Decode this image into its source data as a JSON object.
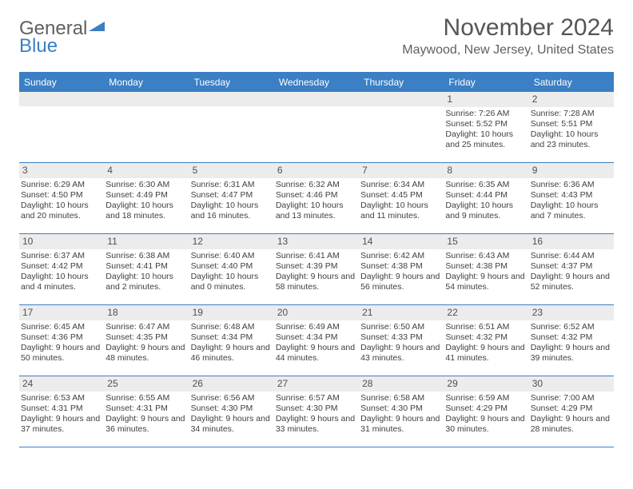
{
  "brand": {
    "word1": "General",
    "word2": "Blue",
    "triangle_color": "#3b7fc4",
    "word1_color": "#606060",
    "word2_color": "#3b7fc4"
  },
  "title": "November 2024",
  "location": "Maywood, New Jersey, United States",
  "colors": {
    "header_bg": "#3b7fc4",
    "header_text": "#ffffff",
    "daynum_bg": "#ececec",
    "border": "#3b7fc4",
    "body_text": "#404040"
  },
  "days_of_week": [
    "Sunday",
    "Monday",
    "Tuesday",
    "Wednesday",
    "Thursday",
    "Friday",
    "Saturday"
  ],
  "weeks": [
    [
      {
        "n": "",
        "sr": "",
        "ss": "",
        "dl": ""
      },
      {
        "n": "",
        "sr": "",
        "ss": "",
        "dl": ""
      },
      {
        "n": "",
        "sr": "",
        "ss": "",
        "dl": ""
      },
      {
        "n": "",
        "sr": "",
        "ss": "",
        "dl": ""
      },
      {
        "n": "",
        "sr": "",
        "ss": "",
        "dl": ""
      },
      {
        "n": "1",
        "sr": "Sunrise: 7:26 AM",
        "ss": "Sunset: 5:52 PM",
        "dl": "Daylight: 10 hours and 25 minutes."
      },
      {
        "n": "2",
        "sr": "Sunrise: 7:28 AM",
        "ss": "Sunset: 5:51 PM",
        "dl": "Daylight: 10 hours and 23 minutes."
      }
    ],
    [
      {
        "n": "3",
        "sr": "Sunrise: 6:29 AM",
        "ss": "Sunset: 4:50 PM",
        "dl": "Daylight: 10 hours and 20 minutes."
      },
      {
        "n": "4",
        "sr": "Sunrise: 6:30 AM",
        "ss": "Sunset: 4:49 PM",
        "dl": "Daylight: 10 hours and 18 minutes."
      },
      {
        "n": "5",
        "sr": "Sunrise: 6:31 AM",
        "ss": "Sunset: 4:47 PM",
        "dl": "Daylight: 10 hours and 16 minutes."
      },
      {
        "n": "6",
        "sr": "Sunrise: 6:32 AM",
        "ss": "Sunset: 4:46 PM",
        "dl": "Daylight: 10 hours and 13 minutes."
      },
      {
        "n": "7",
        "sr": "Sunrise: 6:34 AM",
        "ss": "Sunset: 4:45 PM",
        "dl": "Daylight: 10 hours and 11 minutes."
      },
      {
        "n": "8",
        "sr": "Sunrise: 6:35 AM",
        "ss": "Sunset: 4:44 PM",
        "dl": "Daylight: 10 hours and 9 minutes."
      },
      {
        "n": "9",
        "sr": "Sunrise: 6:36 AM",
        "ss": "Sunset: 4:43 PM",
        "dl": "Daylight: 10 hours and 7 minutes."
      }
    ],
    [
      {
        "n": "10",
        "sr": "Sunrise: 6:37 AM",
        "ss": "Sunset: 4:42 PM",
        "dl": "Daylight: 10 hours and 4 minutes."
      },
      {
        "n": "11",
        "sr": "Sunrise: 6:38 AM",
        "ss": "Sunset: 4:41 PM",
        "dl": "Daylight: 10 hours and 2 minutes."
      },
      {
        "n": "12",
        "sr": "Sunrise: 6:40 AM",
        "ss": "Sunset: 4:40 PM",
        "dl": "Daylight: 10 hours and 0 minutes."
      },
      {
        "n": "13",
        "sr": "Sunrise: 6:41 AM",
        "ss": "Sunset: 4:39 PM",
        "dl": "Daylight: 9 hours and 58 minutes."
      },
      {
        "n": "14",
        "sr": "Sunrise: 6:42 AM",
        "ss": "Sunset: 4:38 PM",
        "dl": "Daylight: 9 hours and 56 minutes."
      },
      {
        "n": "15",
        "sr": "Sunrise: 6:43 AM",
        "ss": "Sunset: 4:38 PM",
        "dl": "Daylight: 9 hours and 54 minutes."
      },
      {
        "n": "16",
        "sr": "Sunrise: 6:44 AM",
        "ss": "Sunset: 4:37 PM",
        "dl": "Daylight: 9 hours and 52 minutes."
      }
    ],
    [
      {
        "n": "17",
        "sr": "Sunrise: 6:45 AM",
        "ss": "Sunset: 4:36 PM",
        "dl": "Daylight: 9 hours and 50 minutes."
      },
      {
        "n": "18",
        "sr": "Sunrise: 6:47 AM",
        "ss": "Sunset: 4:35 PM",
        "dl": "Daylight: 9 hours and 48 minutes."
      },
      {
        "n": "19",
        "sr": "Sunrise: 6:48 AM",
        "ss": "Sunset: 4:34 PM",
        "dl": "Daylight: 9 hours and 46 minutes."
      },
      {
        "n": "20",
        "sr": "Sunrise: 6:49 AM",
        "ss": "Sunset: 4:34 PM",
        "dl": "Daylight: 9 hours and 44 minutes."
      },
      {
        "n": "21",
        "sr": "Sunrise: 6:50 AM",
        "ss": "Sunset: 4:33 PM",
        "dl": "Daylight: 9 hours and 43 minutes."
      },
      {
        "n": "22",
        "sr": "Sunrise: 6:51 AM",
        "ss": "Sunset: 4:32 PM",
        "dl": "Daylight: 9 hours and 41 minutes."
      },
      {
        "n": "23",
        "sr": "Sunrise: 6:52 AM",
        "ss": "Sunset: 4:32 PM",
        "dl": "Daylight: 9 hours and 39 minutes."
      }
    ],
    [
      {
        "n": "24",
        "sr": "Sunrise: 6:53 AM",
        "ss": "Sunset: 4:31 PM",
        "dl": "Daylight: 9 hours and 37 minutes."
      },
      {
        "n": "25",
        "sr": "Sunrise: 6:55 AM",
        "ss": "Sunset: 4:31 PM",
        "dl": "Daylight: 9 hours and 36 minutes."
      },
      {
        "n": "26",
        "sr": "Sunrise: 6:56 AM",
        "ss": "Sunset: 4:30 PM",
        "dl": "Daylight: 9 hours and 34 minutes."
      },
      {
        "n": "27",
        "sr": "Sunrise: 6:57 AM",
        "ss": "Sunset: 4:30 PM",
        "dl": "Daylight: 9 hours and 33 minutes."
      },
      {
        "n": "28",
        "sr": "Sunrise: 6:58 AM",
        "ss": "Sunset: 4:30 PM",
        "dl": "Daylight: 9 hours and 31 minutes."
      },
      {
        "n": "29",
        "sr": "Sunrise: 6:59 AM",
        "ss": "Sunset: 4:29 PM",
        "dl": "Daylight: 9 hours and 30 minutes."
      },
      {
        "n": "30",
        "sr": "Sunrise: 7:00 AM",
        "ss": "Sunset: 4:29 PM",
        "dl": "Daylight: 9 hours and 28 minutes."
      }
    ]
  ]
}
